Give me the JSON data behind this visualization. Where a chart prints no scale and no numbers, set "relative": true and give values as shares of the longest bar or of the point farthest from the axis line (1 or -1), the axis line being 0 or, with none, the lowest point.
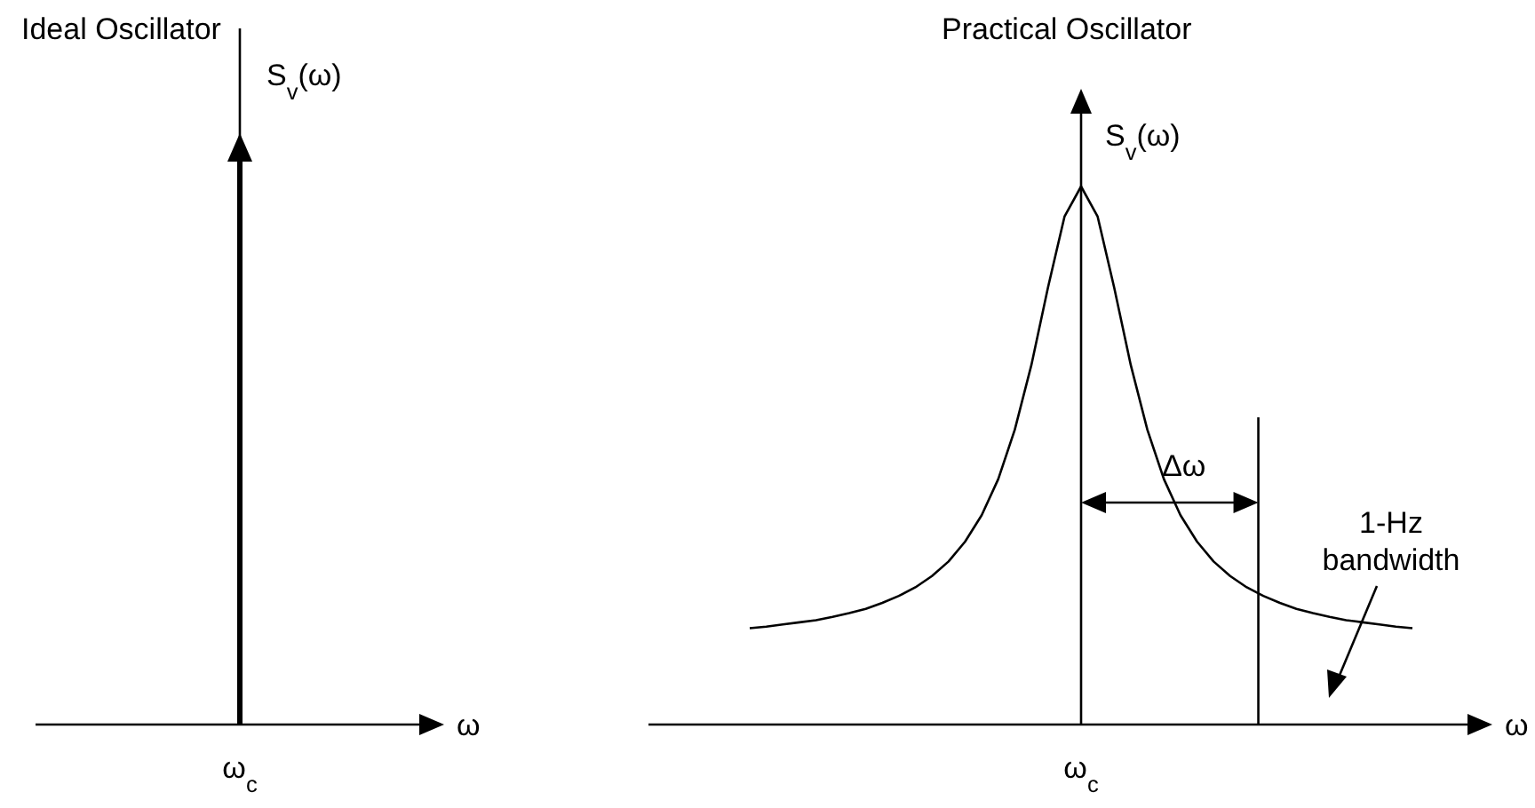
{
  "chart_data": [
    {
      "type": "other",
      "title": "Ideal Oscillator",
      "ylabel": "S$_{v}$(ω)",
      "xlabel": "ω",
      "annotations": [
        "ω$_{c}$"
      ]
    },
    {
      "type": "line",
      "title": "Practical Oscillator",
      "ylabel": "S$_{v}$(ω)",
      "xlabel": "ω",
      "relative": true,
      "color": "#000000",
      "marker": "none",
      "categories": [
        null,
        null,
        null,
        null,
        null,
        null,
        null,
        null,
        null,
        null,
        null,
        null,
        null,
        null,
        null,
        null,
        null,
        null,
        null,
        null,
        null,
        null,
        null,
        null,
        null,
        null,
        null,
        null,
        null,
        null,
        null,
        null,
        null,
        null,
        null,
        null,
        null,
        null,
        null,
        null,
        null
      ],
      "values": [
        0.179,
        0.182,
        0.186,
        0.19,
        0.194,
        0.2,
        0.207,
        0.215,
        0.226,
        0.239,
        0.255,
        0.276,
        0.303,
        0.34,
        0.389,
        0.456,
        0.548,
        0.668,
        0.812,
        0.944,
        1,
        0.944,
        0.812,
        0.668,
        0.548,
        0.456,
        0.389,
        0.34,
        0.303,
        0.276,
        0.255,
        0.239,
        0.226,
        0.215,
        0.207,
        0.2,
        0.194,
        0.19,
        0.186,
        0.182,
        0.179
      ],
      "annotations": [
        "ω$_{c}$",
        "Δω",
        "1-Hz bandwidth"
      ]
    }
  ]
}
